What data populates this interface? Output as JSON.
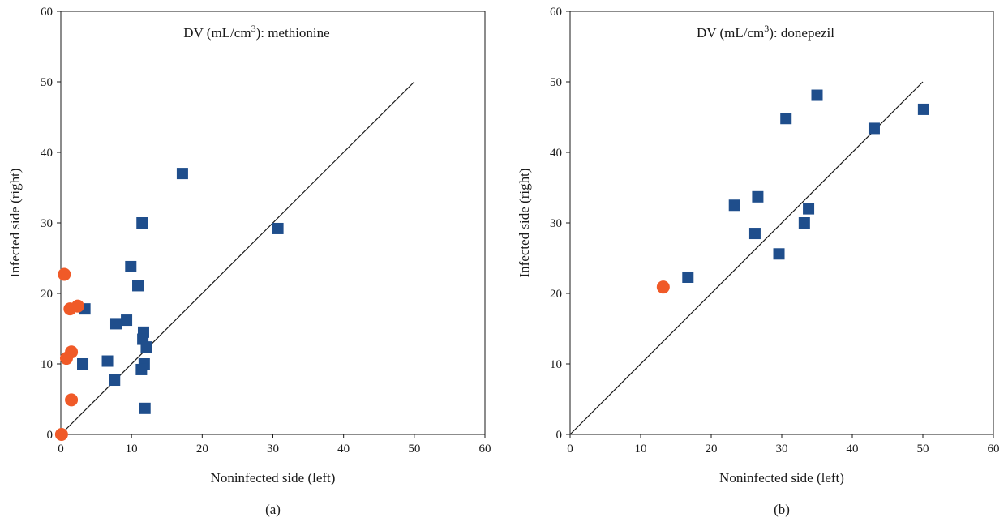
{
  "chart_data": [
    {
      "type": "scatter",
      "panel_label": "(a)",
      "title_prefix": "DV (mL/cm",
      "title_exp": "3",
      "title_suffix": "): methionine",
      "xlabel": "Noninfected side (left)",
      "ylabel": "Infected side (right)",
      "xlim": [
        0,
        60
      ],
      "ylim": [
        0,
        60
      ],
      "xticks": [
        0,
        10,
        20,
        30,
        40,
        50,
        60
      ],
      "yticks": [
        0,
        10,
        20,
        30,
        40,
        50,
        60
      ],
      "grid": false,
      "reference_line": {
        "x": [
          0,
          50
        ],
        "y": [
          0,
          50
        ]
      },
      "series": [
        {
          "marker": "square",
          "color": "#1f4e8c",
          "points": [
            {
              "x": 17.2,
              "y": 37.0
            },
            {
              "x": 30.7,
              "y": 29.2
            },
            {
              "x": 11.5,
              "y": 30.0
            },
            {
              "x": 9.9,
              "y": 23.8
            },
            {
              "x": 10.9,
              "y": 21.1
            },
            {
              "x": 3.4,
              "y": 17.8
            },
            {
              "x": 9.3,
              "y": 16.2
            },
            {
              "x": 7.8,
              "y": 15.7
            },
            {
              "x": 11.7,
              "y": 14.5
            },
            {
              "x": 11.6,
              "y": 13.5
            },
            {
              "x": 12.1,
              "y": 12.4
            },
            {
              "x": 6.6,
              "y": 10.4
            },
            {
              "x": 3.1,
              "y": 10.0
            },
            {
              "x": 11.8,
              "y": 10.0
            },
            {
              "x": 11.4,
              "y": 9.2
            },
            {
              "x": 7.6,
              "y": 7.7
            },
            {
              "x": 11.9,
              "y": 3.7
            }
          ]
        },
        {
          "marker": "circle",
          "color": "#f05a28",
          "points": [
            {
              "x": 0.5,
              "y": 22.7
            },
            {
              "x": 2.4,
              "y": 18.2
            },
            {
              "x": 1.3,
              "y": 17.8
            },
            {
              "x": 1.5,
              "y": 11.7
            },
            {
              "x": 0.8,
              "y": 10.8
            },
            {
              "x": 1.5,
              "y": 4.9
            },
            {
              "x": 0.1,
              "y": 0.0
            }
          ]
        }
      ]
    },
    {
      "type": "scatter",
      "panel_label": "(b)",
      "title_prefix": "DV (mL/cm",
      "title_exp": "3",
      "title_suffix": "): donepezil",
      "xlabel": "Noninfected side (left)",
      "ylabel": "Infected side (right)",
      "xlim": [
        0,
        60
      ],
      "ylim": [
        0,
        60
      ],
      "xticks": [
        0,
        10,
        20,
        30,
        40,
        50,
        60
      ],
      "yticks": [
        0,
        10,
        20,
        30,
        40,
        50,
        60
      ],
      "grid": false,
      "reference_line": {
        "x": [
          0,
          50
        ],
        "y": [
          0,
          50
        ]
      },
      "series": [
        {
          "marker": "square",
          "color": "#1f4e8c",
          "points": [
            {
              "x": 35.0,
              "y": 48.1
            },
            {
              "x": 50.1,
              "y": 46.1
            },
            {
              "x": 30.6,
              "y": 44.8
            },
            {
              "x": 43.1,
              "y": 43.4
            },
            {
              "x": 26.6,
              "y": 33.7
            },
            {
              "x": 23.3,
              "y": 32.5
            },
            {
              "x": 33.8,
              "y": 32.0
            },
            {
              "x": 33.2,
              "y": 30.0
            },
            {
              "x": 26.2,
              "y": 28.5
            },
            {
              "x": 29.6,
              "y": 25.6
            },
            {
              "x": 16.7,
              "y": 22.3
            }
          ]
        },
        {
          "marker": "circle",
          "color": "#f05a28",
          "points": [
            {
              "x": 13.2,
              "y": 20.9
            }
          ]
        }
      ]
    }
  ]
}
